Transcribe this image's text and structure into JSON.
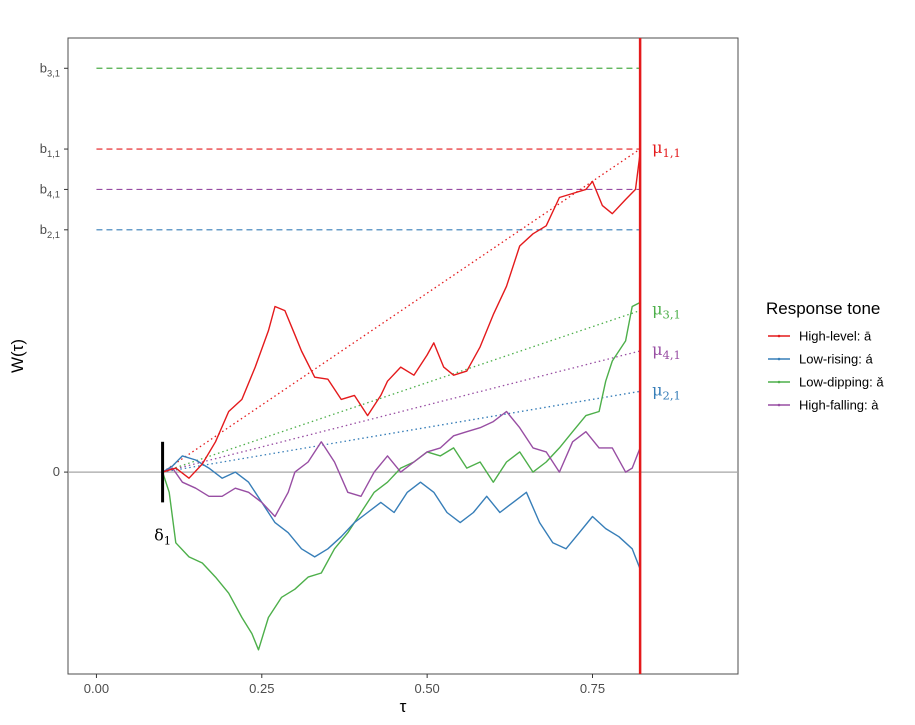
{
  "chart_data": {
    "type": "line",
    "xlabel": "τ",
    "ylabel": "W(τ)",
    "xlim": [
      -0.043,
      0.97
    ],
    "ylim": [
      -1.0,
      2.15
    ],
    "x_ticks": [
      {
        "value": 0.0,
        "label": "0.00"
      },
      {
        "value": 0.25,
        "label": "0.25"
      },
      {
        "value": 0.5,
        "label": "0.50"
      },
      {
        "value": 0.75,
        "label": "0.75"
      }
    ],
    "y_ticks": [
      {
        "value": 0.0,
        "label": "0",
        "sub": ""
      },
      {
        "value": 1.2,
        "label": "b",
        "sub": "2,1"
      },
      {
        "value": 1.4,
        "label": "b",
        "sub": "4,1"
      },
      {
        "value": 1.6,
        "label": "b",
        "sub": "1,1"
      },
      {
        "value": 2.0,
        "label": "b",
        "sub": "3,1"
      }
    ],
    "grid": false,
    "zero_line": 0,
    "legend": {
      "title": "Response tone",
      "position": "right"
    },
    "non_decision_time": {
      "label": "δ",
      "sub": "1",
      "x": 0.1,
      "y_range": [
        -0.15,
        0.15
      ]
    },
    "decision_time": {
      "x": 0.822,
      "color": "#e41a1c"
    },
    "series": [
      {
        "name": "High-level: ā",
        "color": "#e41a1c",
        "boundary": 1.6,
        "drift_label": "μ",
        "drift_sub": "1,1",
        "drift_end": 1.6,
        "path": [
          [
            0.1,
            0
          ],
          [
            0.12,
            0.02
          ],
          [
            0.14,
            -0.03
          ],
          [
            0.16,
            0.04
          ],
          [
            0.18,
            0.15
          ],
          [
            0.2,
            0.3
          ],
          [
            0.22,
            0.36
          ],
          [
            0.24,
            0.52
          ],
          [
            0.26,
            0.7
          ],
          [
            0.27,
            0.82
          ],
          [
            0.285,
            0.8
          ],
          [
            0.3,
            0.68
          ],
          [
            0.31,
            0.6
          ],
          [
            0.33,
            0.47
          ],
          [
            0.35,
            0.46
          ],
          [
            0.37,
            0.36
          ],
          [
            0.39,
            0.38
          ],
          [
            0.41,
            0.28
          ],
          [
            0.43,
            0.38
          ],
          [
            0.44,
            0.45
          ],
          [
            0.46,
            0.52
          ],
          [
            0.48,
            0.48
          ],
          [
            0.5,
            0.58
          ],
          [
            0.51,
            0.64
          ],
          [
            0.525,
            0.52
          ],
          [
            0.54,
            0.48
          ],
          [
            0.56,
            0.5
          ],
          [
            0.58,
            0.62
          ],
          [
            0.6,
            0.78
          ],
          [
            0.62,
            0.92
          ],
          [
            0.64,
            1.12
          ],
          [
            0.66,
            1.18
          ],
          [
            0.68,
            1.22
          ],
          [
            0.7,
            1.36
          ],
          [
            0.72,
            1.38
          ],
          [
            0.74,
            1.4
          ],
          [
            0.75,
            1.44
          ],
          [
            0.765,
            1.32
          ],
          [
            0.78,
            1.28
          ],
          [
            0.8,
            1.35
          ],
          [
            0.815,
            1.4
          ],
          [
            0.822,
            1.58
          ]
        ]
      },
      {
        "name": "Low-rising: á",
        "color": "#377eb8",
        "boundary": 1.2,
        "drift_label": "μ",
        "drift_sub": "2,1",
        "drift_end": 0.4,
        "path": [
          [
            0.1,
            0
          ],
          [
            0.115,
            0.03
          ],
          [
            0.13,
            0.08
          ],
          [
            0.15,
            0.06
          ],
          [
            0.17,
            0.02
          ],
          [
            0.19,
            -0.03
          ],
          [
            0.21,
            0.0
          ],
          [
            0.23,
            -0.05
          ],
          [
            0.25,
            -0.15
          ],
          [
            0.27,
            -0.25
          ],
          [
            0.29,
            -0.3
          ],
          [
            0.31,
            -0.38
          ],
          [
            0.33,
            -0.42
          ],
          [
            0.35,
            -0.38
          ],
          [
            0.37,
            -0.32
          ],
          [
            0.39,
            -0.25
          ],
          [
            0.41,
            -0.2
          ],
          [
            0.43,
            -0.15
          ],
          [
            0.45,
            -0.2
          ],
          [
            0.47,
            -0.1
          ],
          [
            0.49,
            -0.05
          ],
          [
            0.51,
            -0.1
          ],
          [
            0.53,
            -0.2
          ],
          [
            0.55,
            -0.25
          ],
          [
            0.57,
            -0.2
          ],
          [
            0.59,
            -0.12
          ],
          [
            0.61,
            -0.2
          ],
          [
            0.63,
            -0.15
          ],
          [
            0.65,
            -0.1
          ],
          [
            0.67,
            -0.25
          ],
          [
            0.69,
            -0.35
          ],
          [
            0.71,
            -0.38
          ],
          [
            0.73,
            -0.3
          ],
          [
            0.75,
            -0.22
          ],
          [
            0.77,
            -0.28
          ],
          [
            0.79,
            -0.32
          ],
          [
            0.81,
            -0.38
          ],
          [
            0.822,
            -0.48
          ]
        ]
      },
      {
        "name": "Low-dipping: ǎ",
        "color": "#4daf4a",
        "boundary": 2.0,
        "drift_label": "μ",
        "drift_sub": "3,1",
        "drift_end": 0.8,
        "path": [
          [
            0.1,
            0
          ],
          [
            0.11,
            -0.1
          ],
          [
            0.12,
            -0.35
          ],
          [
            0.14,
            -0.42
          ],
          [
            0.16,
            -0.45
          ],
          [
            0.18,
            -0.52
          ],
          [
            0.2,
            -0.6
          ],
          [
            0.22,
            -0.72
          ],
          [
            0.235,
            -0.8
          ],
          [
            0.245,
            -0.88
          ],
          [
            0.26,
            -0.72
          ],
          [
            0.28,
            -0.62
          ],
          [
            0.3,
            -0.58
          ],
          [
            0.32,
            -0.52
          ],
          [
            0.34,
            -0.5
          ],
          [
            0.36,
            -0.38
          ],
          [
            0.38,
            -0.3
          ],
          [
            0.4,
            -0.2
          ],
          [
            0.42,
            -0.1
          ],
          [
            0.44,
            -0.05
          ],
          [
            0.46,
            0.02
          ],
          [
            0.48,
            0.05
          ],
          [
            0.5,
            0.1
          ],
          [
            0.52,
            0.08
          ],
          [
            0.54,
            0.12
          ],
          [
            0.56,
            0.02
          ],
          [
            0.58,
            0.05
          ],
          [
            0.6,
            -0.05
          ],
          [
            0.62,
            0.05
          ],
          [
            0.64,
            0.1
          ],
          [
            0.66,
            0.0
          ],
          [
            0.68,
            0.05
          ],
          [
            0.7,
            0.12
          ],
          [
            0.72,
            0.2
          ],
          [
            0.74,
            0.28
          ],
          [
            0.76,
            0.3
          ],
          [
            0.77,
            0.45
          ],
          [
            0.78,
            0.55
          ],
          [
            0.8,
            0.65
          ],
          [
            0.81,
            0.82
          ],
          [
            0.822,
            0.84
          ]
        ]
      },
      {
        "name": "High-falling: à",
        "color": "#984ea3",
        "boundary": 1.4,
        "drift_label": "μ",
        "drift_sub": "4,1",
        "drift_end": 0.6,
        "path": [
          [
            0.1,
            0
          ],
          [
            0.115,
            0.02
          ],
          [
            0.13,
            -0.05
          ],
          [
            0.15,
            -0.08
          ],
          [
            0.17,
            -0.12
          ],
          [
            0.19,
            -0.12
          ],
          [
            0.21,
            -0.08
          ],
          [
            0.23,
            -0.1
          ],
          [
            0.25,
            -0.15
          ],
          [
            0.27,
            -0.22
          ],
          [
            0.29,
            -0.1
          ],
          [
            0.3,
            0.0
          ],
          [
            0.32,
            0.05
          ],
          [
            0.34,
            0.15
          ],
          [
            0.36,
            0.05
          ],
          [
            0.38,
            -0.1
          ],
          [
            0.4,
            -0.12
          ],
          [
            0.42,
            0.0
          ],
          [
            0.44,
            0.08
          ],
          [
            0.46,
            0.0
          ],
          [
            0.48,
            0.05
          ],
          [
            0.5,
            0.1
          ],
          [
            0.52,
            0.12
          ],
          [
            0.54,
            0.18
          ],
          [
            0.56,
            0.2
          ],
          [
            0.58,
            0.22
          ],
          [
            0.6,
            0.25
          ],
          [
            0.62,
            0.3
          ],
          [
            0.64,
            0.22
          ],
          [
            0.66,
            0.12
          ],
          [
            0.68,
            0.1
          ],
          [
            0.7,
            0.0
          ],
          [
            0.72,
            0.15
          ],
          [
            0.74,
            0.2
          ],
          [
            0.76,
            0.12
          ],
          [
            0.78,
            0.12
          ],
          [
            0.8,
            0.0
          ],
          [
            0.81,
            0.02
          ],
          [
            0.822,
            0.12
          ]
        ]
      }
    ]
  }
}
